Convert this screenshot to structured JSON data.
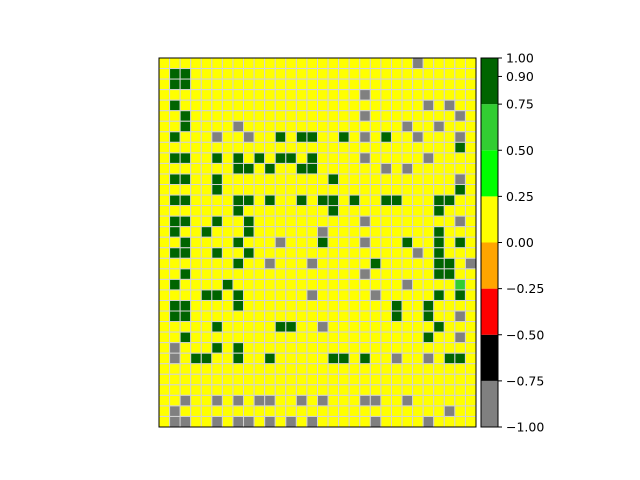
{
  "chart_data": {
    "type": "heatmap",
    "title": "",
    "xlabel": "",
    "ylabel": "",
    "rows": 35,
    "cols": 30,
    "legend": "colorbar-right",
    "grid": true,
    "gridline_color": "#d3d3d3",
    "colorbar": {
      "range": [
        -1.0,
        1.0
      ],
      "bounds": [
        -1.0,
        -0.75,
        -0.5,
        -0.25,
        0.0,
        0.25,
        0.5,
        0.75,
        1.0
      ],
      "colors": [
        "#808080",
        "#000000",
        "#ff0000",
        "#ffa500",
        "#ffff00",
        "#00ff00",
        "#32cd32",
        "#006400"
      ],
      "tick_labels": [
        "1.00",
        "0.90",
        "0.75",
        "0.50",
        "0.25",
        "0.00",
        "−0.25",
        "−0.50",
        "−0.75",
        "−1.00"
      ],
      "tick_values": [
        1.0,
        0.9,
        0.75,
        0.5,
        0.25,
        0.0,
        -0.25,
        -0.5,
        -0.75,
        -1.0
      ]
    },
    "cell_legend": {
      "Y": "value between 0.00 and 0.25 (yellow)",
      "D": "value between 0.75 and 1.00 (dark green)",
      "G": "value between -1.00 and -0.75 (gray)",
      "L": "value between 0.50 and 0.75 (lime green)"
    },
    "matrix": [
      "YYYYYYYYYYYYYYYYYYYYYYYYGYYYYY",
      "YDDYYYYYYYYYYYYYYYYYYYYYYYYYYY",
      "YDDYYYYYYYYYYYYYYYYYYYYYYYYYYY",
      "YYYYYYYYYYYYYYYYYYYGYYYYYYYYYY",
      "YDYYYYYYYYYYYYYYYYYYYYYYYGYGYY",
      "YYDYYYYYYYYYYYYYYYYGYYYYYYYYGY",
      "YYDYYYYGYYYYYYYYYYYYYYYGYYGYYY",
      "YDYYYGYYGYYDYDDYYDYGYDYYGYYYGY",
      "YYYYYYYYYYYYYYYYYYYYYYYYYYYYDY",
      "YDDYYDYDYDYDDYDYYYYGYYYYYGYYYY",
      "YYYYYYYDDYDYYDDYYYYYYGYGYYYYYY",
      "YDDYYDYYYYYYYYYYDYYYYYYYYYYYGY",
      "YYYYYDYYYYYYYYYYYYYYYYYYYYYYDY",
      "YDDYYYYDDYDYYDYDDYDYYDDYYYDDYY",
      "YYYYYYYDYYYYYYYYDYYYYYYYYYDYYY",
      "YDDYYDYYDYYYYYYYYYYGYYYYYYYYGY",
      "YDYYDYYYDYYYYYYGYYYYYYYYYYDYYY",
      "YYDYYYYDYYYGYYYDYYYGYYYDYYDYDY",
      "YDDYYDYYDYYYYYYYYYYYYYYYGYDYYY",
      "YYYYYYYDYYGYYYGYYYYYDYYYYYDDYG",
      "YYDYYYYYYYYYYYYYYYYGYYYYYYDDYY",
      "YDYYYYDYYYYYYYYYYYYYYYYGYYYYLY",
      "YYYYDDYDYYYYYYGYYYYYGYYYYYDYDY",
      "YDDYYYYDYYYYYYYYYYYYYYDYYDYYYY",
      "YDDYYYYYYYYYYYYYYYYYYYDYYDYYGY",
      "YYYYYDYYYYYDDYYGYYYYYYYYYYDYYY",
      "YYDYYYYYYYYYYYYYYYYYYYYYYDYYGY",
      "YGYYYDYDYYYYYYYYYYYYYYYYYYYYYY",
      "YGYDDYYDYYDYYYYYDDYDYYGYYGYDDYD",
      "YYYYYYYYYYYYYYYYYYYYYYYYYYYYYY",
      "YYYYYYYYYYYYYYYYYYYYYYYYYYYYYY",
      "YYYYYYYYYYYYYYYYYYYYYYYYYYYYYY",
      "YYGYYGYGYGGYYGYGYYYGGYYGYYYYYY",
      "YGYYYYYYYYYYYYYYYYYYYYYYYYYGYY",
      "YGGYYGYGGYGYGYGYYYYYGYYYYGYYYY"
    ]
  }
}
